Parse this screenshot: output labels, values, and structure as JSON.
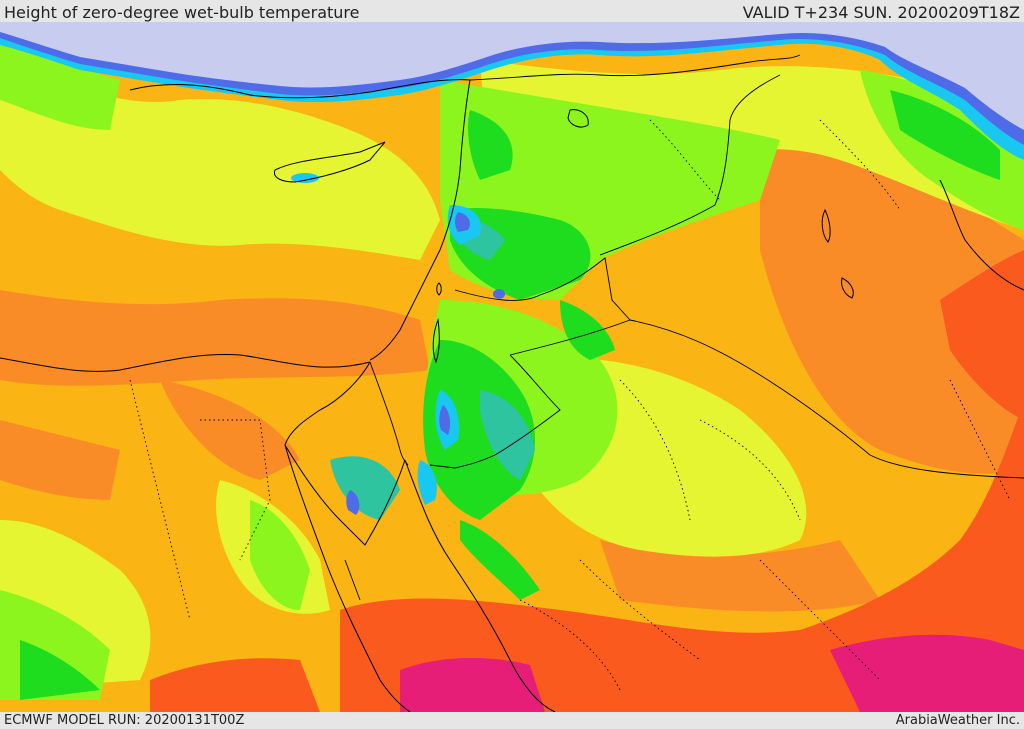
{
  "header": {
    "title": "Height of zero-degree wet-bulb temperature",
    "valid": "VALID T+234 SUN. 20200209T18Z"
  },
  "footer": {
    "model_run": "ECMWF MODEL RUN: 20200131T00Z",
    "credit": "ArabiaWeather Inc."
  },
  "colors": {
    "below_zero": "#c8cdf0",
    "blue": "#4f6be8",
    "cyan": "#18c8f0",
    "teal": "#2ec4a0",
    "green": "#1edc1e",
    "light_green": "#8cf51e",
    "yellow_green": "#e6f532",
    "orange": "#fab414",
    "dark_orange": "#fa8c28",
    "red_orange": "#fa5a1e",
    "magenta": "#e61e78",
    "borders": "#000000"
  }
}
